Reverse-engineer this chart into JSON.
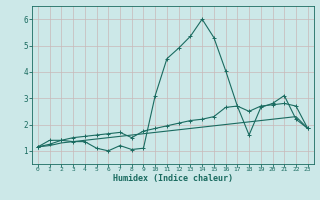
{
  "xlabel": "Humidex (Indice chaleur)",
  "xlim": [
    -0.5,
    23.5
  ],
  "ylim": [
    0.5,
    6.5
  ],
  "yticks": [
    1,
    2,
    3,
    4,
    5,
    6
  ],
  "xticks": [
    0,
    1,
    2,
    3,
    4,
    5,
    6,
    7,
    8,
    9,
    10,
    11,
    12,
    13,
    14,
    15,
    16,
    17,
    18,
    19,
    20,
    21,
    22,
    23
  ],
  "bg_color": "#cce8e8",
  "grid_color": "#c8b8b8",
  "line_color": "#1a6b60",
  "line1_x": [
    0,
    1,
    2,
    3,
    4,
    5,
    6,
    7,
    8,
    9,
    10,
    11,
    12,
    13,
    14,
    15,
    16,
    17,
    18,
    19,
    20,
    21,
    22,
    23
  ],
  "line1_y": [
    1.15,
    1.4,
    1.4,
    1.35,
    1.35,
    1.1,
    1.0,
    1.2,
    1.05,
    1.1,
    3.1,
    4.5,
    4.9,
    5.35,
    6.0,
    5.3,
    4.05,
    2.7,
    1.6,
    2.65,
    2.8,
    3.1,
    2.2,
    1.85
  ],
  "line2_x": [
    0,
    1,
    2,
    3,
    4,
    5,
    6,
    7,
    8,
    9,
    10,
    11,
    12,
    13,
    14,
    15,
    16,
    17,
    18,
    19,
    20,
    21,
    22,
    23
  ],
  "line2_y": [
    1.15,
    1.25,
    1.4,
    1.5,
    1.55,
    1.6,
    1.65,
    1.7,
    1.5,
    1.75,
    1.85,
    1.95,
    2.05,
    2.15,
    2.2,
    2.3,
    2.65,
    2.7,
    2.5,
    2.7,
    2.75,
    2.8,
    2.7,
    1.85
  ],
  "line3_x": [
    0,
    1,
    2,
    3,
    4,
    5,
    6,
    7,
    8,
    9,
    10,
    11,
    12,
    13,
    14,
    15,
    16,
    17,
    18,
    19,
    20,
    21,
    22,
    23
  ],
  "line3_y": [
    1.15,
    1.2,
    1.3,
    1.35,
    1.4,
    1.45,
    1.5,
    1.55,
    1.6,
    1.65,
    1.7,
    1.75,
    1.8,
    1.85,
    1.9,
    1.95,
    2.0,
    2.05,
    2.1,
    2.15,
    2.2,
    2.25,
    2.3,
    1.85
  ]
}
